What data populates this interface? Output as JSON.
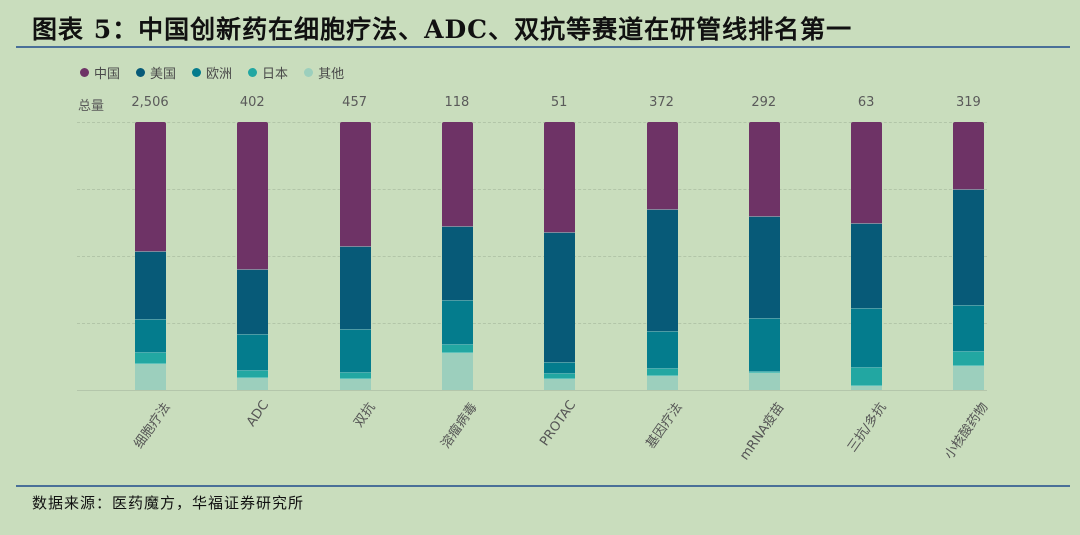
{
  "title": "图表 5：中国创新药在细胞疗法、ADC、双抗等赛道在研管线排名第一",
  "source": "数据来源：医药魔方，华福证券研究所",
  "legend": [
    {
      "label": "中国",
      "color": "#6e3366"
    },
    {
      "label": "美国",
      "color": "#075a78"
    },
    {
      "label": "欧洲",
      "color": "#047c8d"
    },
    {
      "label": "日本",
      "color": "#22a7a2"
    },
    {
      "label": "其他",
      "color": "#9ccfbd"
    }
  ],
  "totals_label": "总量",
  "chart_data": {
    "type": "bar",
    "stacked": true,
    "normalized_percent": true,
    "title": "图表 5：中国创新药在细胞疗法、ADC、双抗等赛道在研管线排名第一",
    "xlabel": "",
    "ylabel": "",
    "ylim": [
      0,
      100
    ],
    "grid": true,
    "legend_position": "top-left",
    "categories": [
      "细胞疗法",
      "ADC",
      "双抗",
      "溶瘤病毒",
      "PROTAC",
      "基因疗法",
      "mRNA疫苗",
      "三抗/多抗",
      "小核酸药物"
    ],
    "totals": [
      "2,506",
      "402",
      "457",
      "118",
      "51",
      "372",
      "292",
      "63",
      "319"
    ],
    "series": [
      {
        "name": "中国",
        "color": "#6e3366",
        "values": [
          48.5,
          55.2,
          46.6,
          39.2,
          41.4,
          32.8,
          35.4,
          38.1,
          25.4
        ]
      },
      {
        "name": "美国",
        "color": "#075a78",
        "values": [
          25.4,
          24.3,
          31.0,
          27.6,
          48.5,
          45.5,
          38.1,
          31.7,
          43.3
        ]
      },
      {
        "name": "欧洲",
        "color": "#047c8d",
        "values": [
          12.3,
          13.4,
          16.0,
          16.4,
          4.1,
          13.8,
          19.8,
          22.0,
          17.2
        ]
      },
      {
        "name": "日本",
        "color": "#22a7a2",
        "values": [
          4.1,
          2.6,
          2.2,
          3.0,
          1.9,
          2.6,
          0.5,
          6.7,
          5.2
        ]
      },
      {
        "name": "其他",
        "color": "#9ccfbd",
        "values": [
          9.7,
          4.5,
          4.2,
          13.8,
          4.1,
          5.3,
          6.2,
          1.5,
          8.9
        ]
      }
    ],
    "source": "数据来源：医药魔方，华福证券研究所"
  }
}
